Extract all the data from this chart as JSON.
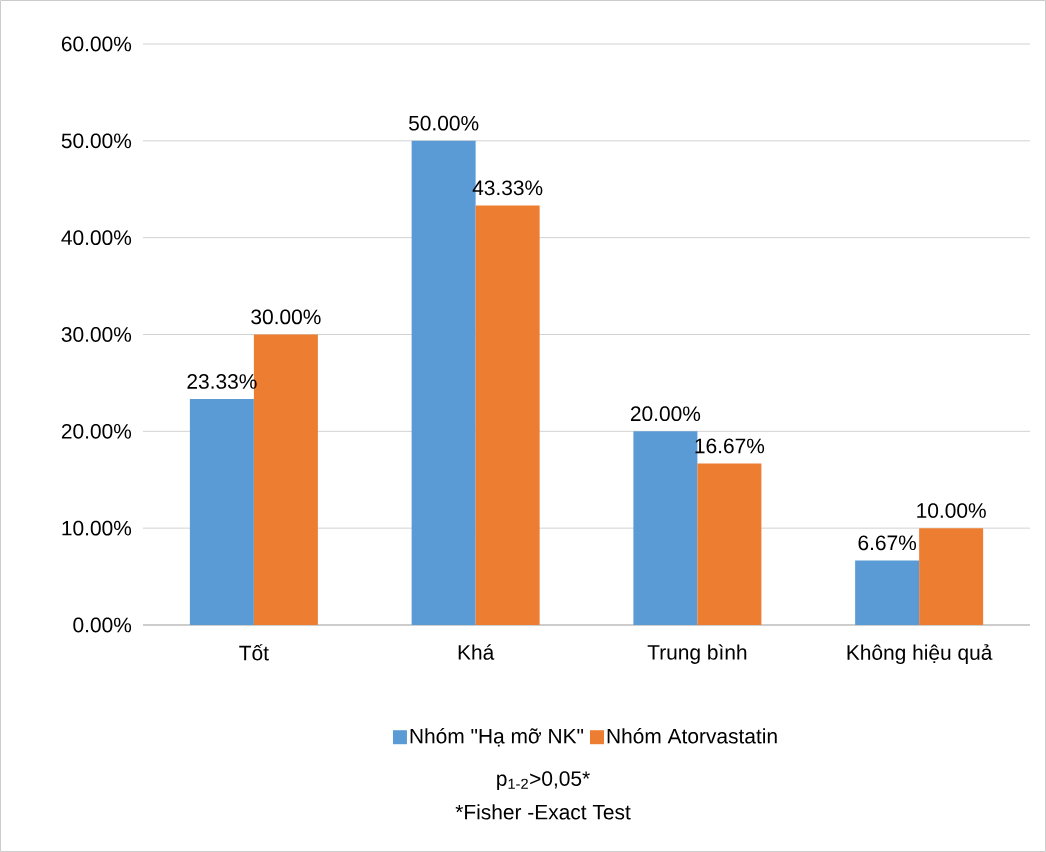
{
  "chart_data": {
    "type": "bar",
    "categories": [
      "Tốt",
      "Khá",
      "Trung bình",
      "Không hiệu quả"
    ],
    "series": [
      {
        "name": "Nhóm \"Hạ mỡ NK\"",
        "color": "#5b9bd5",
        "values": [
          23.33,
          50.0,
          20.0,
          6.67
        ],
        "value_labels": [
          "23.33%",
          "50.00%",
          "20.00%",
          "6.67%"
        ]
      },
      {
        "name": "Nhóm Atorvastatin",
        "color": "#ed7d31",
        "values": [
          30.0,
          43.33,
          16.67,
          10.0
        ],
        "value_labels": [
          "30.00%",
          "43.33%",
          "16.67%",
          "10.00%"
        ]
      }
    ],
    "ylim": [
      0,
      60
    ],
    "yticks": [
      {
        "value": 0,
        "label": "0.00%"
      },
      {
        "value": 10,
        "label": "10.00%"
      },
      {
        "value": 20,
        "label": "20.00%"
      },
      {
        "value": 30,
        "label": "30.00%"
      },
      {
        "value": 40,
        "label": "40.00%"
      },
      {
        "value": 50,
        "label": "50.00%"
      },
      {
        "value": 60,
        "label": "60.00%"
      }
    ],
    "grid": "y",
    "legend": "bottom",
    "annotations": [
      "p$_{1-2}$>0,05*",
      "*Fisher -Exact Test"
    ]
  }
}
